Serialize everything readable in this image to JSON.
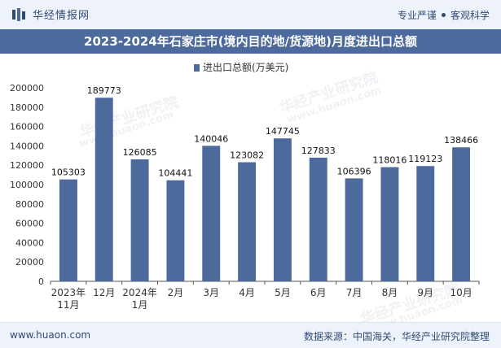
{
  "header": {
    "brand_name": "华经情报网",
    "tagline_left": "专业严谨",
    "tagline_right": "客观科学"
  },
  "title": "2023-2024年石家庄市(境内目的地/货源地)月度进出口总额",
  "watermark": {
    "main": "华经产业研究院",
    "url": "www.huaon.com"
  },
  "footer": {
    "left": "www.huaon.com",
    "right": "数据来源：中国海关，华经产业研究院整理"
  },
  "colors": {
    "bar": "#4d6a9c",
    "axis": "#333333",
    "grid": "#e6e6e6"
  },
  "chart_data": {
    "type": "bar",
    "categories": [
      "2023年\n11月",
      "12月",
      "2024年\n1月",
      "2月",
      "3月",
      "4月",
      "5月",
      "6月",
      "7月",
      "8月",
      "9月",
      "10月"
    ],
    "series": [
      {
        "name": "进出口总额(万美元)",
        "values": [
          105303,
          189773,
          126085,
          104441,
          140046,
          123082,
          147745,
          127833,
          106396,
          118016,
          119123,
          138466
        ]
      }
    ],
    "yticks": [
      0,
      20000,
      40000,
      60000,
      80000,
      100000,
      120000,
      140000,
      160000,
      180000,
      200000
    ],
    "ylim": [
      0,
      200000
    ],
    "legend": "top-center",
    "grid": false,
    "data_labels": true
  }
}
